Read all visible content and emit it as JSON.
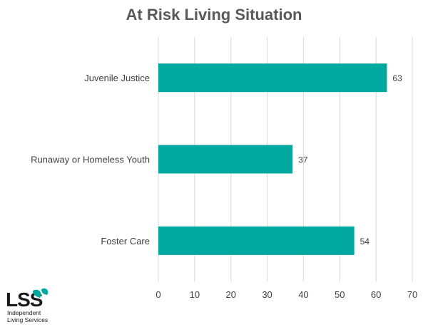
{
  "chart_data": {
    "type": "bar",
    "orientation": "horizontal",
    "title": "At Risk Living Situation",
    "categories": [
      "Juvenile Justice",
      "Runaway or Homeless Youth",
      "Foster Care"
    ],
    "values": [
      63,
      37,
      54
    ],
    "xlim": [
      0,
      70
    ],
    "xticks": [
      "0",
      "10",
      "20",
      "30",
      "40",
      "50",
      "60",
      "70"
    ],
    "grid": true,
    "bar_color": "#00a8a0"
  },
  "logo": {
    "mark": "LSS",
    "line1": "Independent",
    "line2": "Living Services"
  }
}
